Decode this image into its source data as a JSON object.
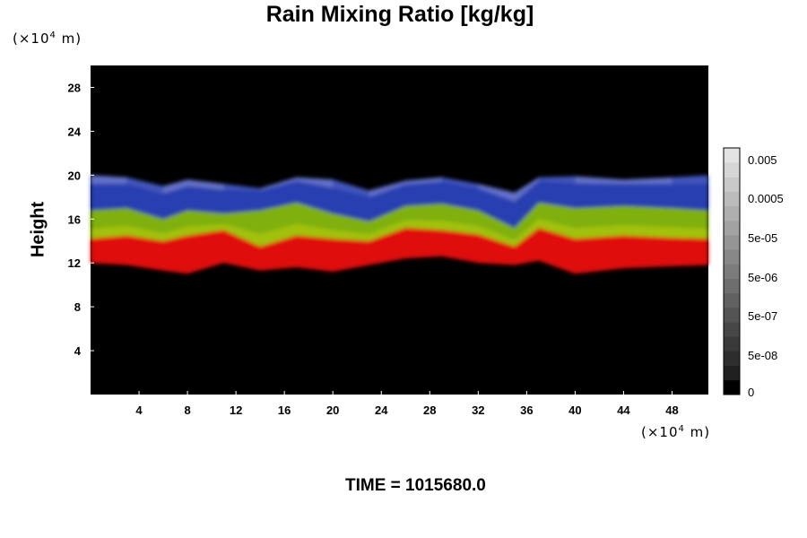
{
  "chart_data": {
    "type": "heatmap",
    "title": "Rain Mixing Ratio [kg/kg]",
    "ylabel": "Height",
    "x_unit_prefix": "(×10",
    "x_unit_exp": "4",
    "x_unit_suffix": " m)",
    "y_unit_prefix": "(×10",
    "y_unit_exp": "4",
    "y_unit_suffix": " m)",
    "xlim": [
      0,
      51
    ],
    "ylim": [
      0,
      30
    ],
    "x_ticks": [
      4,
      8,
      12,
      16,
      20,
      24,
      28,
      32,
      36,
      40,
      44,
      48
    ],
    "y_ticks": [
      4,
      8,
      12,
      16,
      20,
      24,
      28
    ],
    "colorbar": {
      "levels": [
        "0",
        "5e-08",
        "5e-07",
        "5e-06",
        "5e-05",
        "0.0005",
        "0.005"
      ],
      "colors": [
        "#000000",
        "#202020",
        "#2d2d2d",
        "#3a3a3a",
        "#474747",
        "#545454",
        "#616161",
        "#6e6e6e",
        "#7b7b7b",
        "#888888",
        "#959595",
        "#a2a2a2",
        "#afafaf",
        "#bcbcbc",
        "#c9c9c9",
        "#d6d6d6",
        "#e3e3e3"
      ]
    },
    "band_colors": {
      "background": "#000000",
      "top": "#8f9bd8",
      "upper": "#2f45c4",
      "middle": "#7fb010",
      "lower": "#c0d000",
      "bottom": "#e01010"
    },
    "layer_profile": [
      {
        "x": 0,
        "top": 20.0,
        "blue_low": 16.8,
        "green_low": 14.2,
        "red_low": 12.0
      },
      {
        "x": 3,
        "top": 19.8,
        "blue_low": 17.0,
        "green_low": 14.5,
        "red_low": 11.8
      },
      {
        "x": 6,
        "top": 19.0,
        "blue_low": 16.0,
        "green_low": 14.0,
        "red_low": 11.3
      },
      {
        "x": 8,
        "top": 19.6,
        "blue_low": 16.8,
        "green_low": 14.5,
        "red_low": 11.0
      },
      {
        "x": 11,
        "top": 19.2,
        "blue_low": 16.5,
        "green_low": 15.0,
        "red_low": 12.0
      },
      {
        "x": 14,
        "top": 18.8,
        "blue_low": 16.8,
        "green_low": 13.5,
        "red_low": 11.3
      },
      {
        "x": 17,
        "top": 19.8,
        "blue_low": 17.5,
        "green_low": 14.5,
        "red_low": 11.6
      },
      {
        "x": 20,
        "top": 19.6,
        "blue_low": 16.5,
        "green_low": 14.2,
        "red_low": 11.2
      },
      {
        "x": 23,
        "top": 18.6,
        "blue_low": 15.8,
        "green_low": 14.0,
        "red_low": 11.8
      },
      {
        "x": 26,
        "top": 19.5,
        "blue_low": 17.2,
        "green_low": 15.2,
        "red_low": 12.4
      },
      {
        "x": 29,
        "top": 19.8,
        "blue_low": 17.4,
        "green_low": 15.0,
        "red_low": 12.6
      },
      {
        "x": 32,
        "top": 19.2,
        "blue_low": 16.8,
        "green_low": 14.6,
        "red_low": 12.0
      },
      {
        "x": 35,
        "top": 18.4,
        "blue_low": 15.2,
        "green_low": 13.5,
        "red_low": 11.8
      },
      {
        "x": 37,
        "top": 19.8,
        "blue_low": 17.5,
        "green_low": 15.2,
        "red_low": 12.2
      },
      {
        "x": 40,
        "top": 19.9,
        "blue_low": 17.0,
        "green_low": 14.2,
        "red_low": 11.0
      },
      {
        "x": 44,
        "top": 19.6,
        "blue_low": 17.2,
        "green_low": 14.5,
        "red_low": 11.5
      },
      {
        "x": 48,
        "top": 19.8,
        "blue_low": 17.0,
        "green_low": 14.3,
        "red_low": 11.7
      },
      {
        "x": 51,
        "top": 20.0,
        "blue_low": 16.8,
        "green_low": 14.2,
        "red_low": 11.8
      }
    ],
    "time_label": "TIME = 1015680.0"
  }
}
